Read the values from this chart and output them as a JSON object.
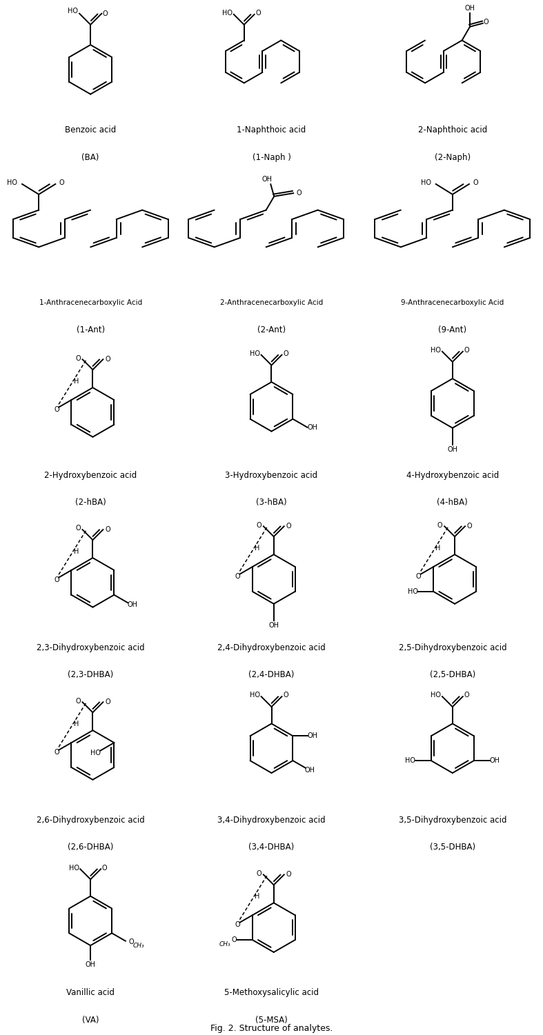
{
  "title": "Fig. 2. Structure of analytes.",
  "fig_width": 7.87,
  "fig_height": 15.01,
  "bg_color": "#ffffff",
  "text_color": "#000000",
  "lw": 1.4,
  "compounds": [
    {
      "name": "Benzoic acid",
      "abbr": "(BA)",
      "row": 0,
      "col": 0
    },
    {
      "name": "1-Naphthoic acid",
      "abbr": "(1-Naph )",
      "row": 0,
      "col": 1
    },
    {
      "name": "2-Naphthoic acid",
      "abbr": "(2-Naph)",
      "row": 0,
      "col": 2
    },
    {
      "name": "1-Anthracenecarboxylic Acid",
      "abbr": "(1-Ant)",
      "row": 1,
      "col": 0
    },
    {
      "name": "2-Anthracenecarboxylic Acid",
      "abbr": "(2-Ant)",
      "row": 1,
      "col": 1
    },
    {
      "name": "9-Anthracenecarboxylic Acid",
      "abbr": "(9-Ant)",
      "row": 1,
      "col": 2
    },
    {
      "name": "2-Hydroxybenzoic acid",
      "abbr": "(2-hBA)",
      "row": 2,
      "col": 0
    },
    {
      "name": "3-Hydroxybenzoic acid",
      "abbr": "(3-hBA)",
      "row": 2,
      "col": 1
    },
    {
      "name": "4-Hydroxybenzoic acid",
      "abbr": "(4-hBA)",
      "row": 2,
      "col": 2
    },
    {
      "name": "2,3-Dihydroxybenzoic acid",
      "abbr": "(2,3-DHBA)",
      "row": 3,
      "col": 0
    },
    {
      "name": "2,4-Dihydroxybenzoic acid",
      "abbr": "(2,4-DHBA)",
      "row": 3,
      "col": 1
    },
    {
      "name": "2,5-Dihydroxybenzoic acid",
      "abbr": "(2,5-DHBA)",
      "row": 3,
      "col": 2
    },
    {
      "name": "2,6-Dihydroxybenzoic acid",
      "abbr": "(2,6-DHBA)",
      "row": 4,
      "col": 0
    },
    {
      "name": "3,4-Dihydroxybenzoic acid",
      "abbr": "(3,4-DHBA)",
      "row": 4,
      "col": 1
    },
    {
      "name": "3,5-Dihydroxybenzoic acid",
      "abbr": "(3,5-DHBA)",
      "row": 4,
      "col": 2
    },
    {
      "name": "Vanillic acid",
      "abbr": "(VA)",
      "row": 5,
      "col": 0
    },
    {
      "name": "5-Methoxysalicylic acid",
      "abbr": "(5-MSA)",
      "row": 5,
      "col": 1
    }
  ]
}
